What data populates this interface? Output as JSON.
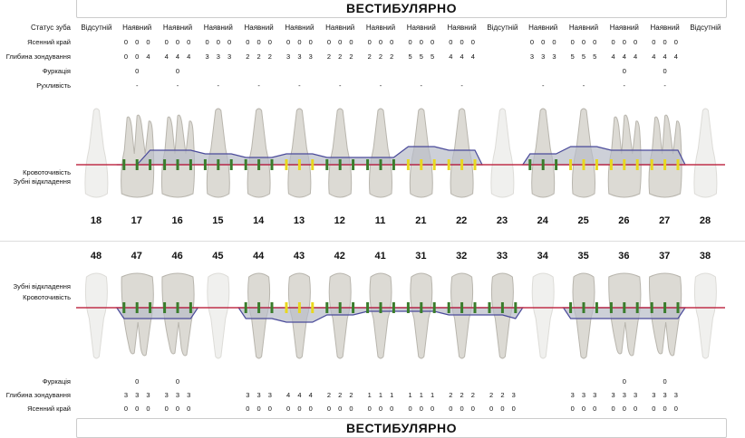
{
  "upper": {
    "title": "ВЕСТИБУЛЯРНО",
    "labels": {
      "status": "Статус зуба",
      "gingival_margin": "Ясенний край",
      "probing_depth": "Глибина зондування",
      "furcation": "Фуркація",
      "mobility": "Рухливість",
      "bleeding": "Кровоточивість",
      "plaque": "Зубні відкладення"
    },
    "teeth": [
      {
        "number": "18",
        "status": "Відсутній",
        "margin": [
          "",
          "",
          ""
        ],
        "depth": [
          "",
          "",
          ""
        ],
        "furcation": "",
        "mobility": ""
      },
      {
        "number": "17",
        "status": "Наявний",
        "margin": [
          "0",
          "0",
          "0"
        ],
        "depth": [
          "0",
          "0",
          "4"
        ],
        "furcation": "0",
        "mobility": "-"
      },
      {
        "number": "16",
        "status": "Наявний",
        "margin": [
          "0",
          "0",
          "0"
        ],
        "depth": [
          "4",
          "4",
          "4"
        ],
        "furcation": "0",
        "mobility": "-"
      },
      {
        "number": "15",
        "status": "Наявний",
        "margin": [
          "0",
          "0",
          "0"
        ],
        "depth": [
          "3",
          "3",
          "3"
        ],
        "furcation": "",
        "mobility": "-"
      },
      {
        "number": "14",
        "status": "Наявний",
        "margin": [
          "0",
          "0",
          "0"
        ],
        "depth": [
          "2",
          "2",
          "2"
        ],
        "furcation": "",
        "mobility": "-"
      },
      {
        "number": "13",
        "status": "Наявний",
        "margin": [
          "0",
          "0",
          "0"
        ],
        "depth": [
          "3",
          "3",
          "3"
        ],
        "furcation": "",
        "mobility": "-"
      },
      {
        "number": "12",
        "status": "Наявний",
        "margin": [
          "0",
          "0",
          "0"
        ],
        "depth": [
          "2",
          "2",
          "2"
        ],
        "furcation": "",
        "mobility": "-"
      },
      {
        "number": "11",
        "status": "Наявний",
        "margin": [
          "0",
          "0",
          "0"
        ],
        "depth": [
          "2",
          "2",
          "2"
        ],
        "furcation": "",
        "mobility": "-"
      },
      {
        "number": "21",
        "status": "Наявний",
        "margin": [
          "0",
          "0",
          "0"
        ],
        "depth": [
          "5",
          "5",
          "5"
        ],
        "furcation": "",
        "mobility": "-"
      },
      {
        "number": "22",
        "status": "Наявний",
        "margin": [
          "0",
          "0",
          "0"
        ],
        "depth": [
          "4",
          "4",
          "4"
        ],
        "furcation": "",
        "mobility": "-"
      },
      {
        "number": "23",
        "status": "Відсутній",
        "margin": [
          "",
          "",
          ""
        ],
        "depth": [
          "",
          "",
          ""
        ],
        "furcation": "",
        "mobility": ""
      },
      {
        "number": "24",
        "status": "Наявний",
        "margin": [
          "0",
          "0",
          "0"
        ],
        "depth": [
          "3",
          "3",
          "3"
        ],
        "furcation": "",
        "mobility": "-"
      },
      {
        "number": "25",
        "status": "Наявний",
        "margin": [
          "0",
          "0",
          "0"
        ],
        "depth": [
          "5",
          "5",
          "5"
        ],
        "furcation": "",
        "mobility": "-"
      },
      {
        "number": "26",
        "status": "Наявний",
        "margin": [
          "0",
          "0",
          "0"
        ],
        "depth": [
          "4",
          "4",
          "4"
        ],
        "furcation": "0",
        "mobility": "-"
      },
      {
        "number": "27",
        "status": "Наявний",
        "margin": [
          "0",
          "0",
          "0"
        ],
        "depth": [
          "4",
          "4",
          "4"
        ],
        "furcation": "0",
        "mobility": "-"
      },
      {
        "number": "28",
        "status": "Відсутній",
        "margin": [
          "",
          "",
          ""
        ],
        "depth": [
          "",
          "",
          ""
        ],
        "furcation": "",
        "mobility": ""
      }
    ]
  },
  "lower": {
    "title": "ВЕСТИБУЛЯРНО",
    "labels": {
      "plaque": "Зубні відкладення",
      "bleeding": "Кровоточивість",
      "furcation": "Фуркація",
      "probing_depth": "Глибина зондування",
      "gingival_margin": "Ясенний край"
    },
    "teeth": [
      {
        "number": "48",
        "present": false,
        "margin": [
          "",
          "",
          ""
        ],
        "depth": [
          "",
          "",
          ""
        ],
        "furcation": ""
      },
      {
        "number": "47",
        "present": true,
        "margin": [
          "0",
          "0",
          "0"
        ],
        "depth": [
          "3",
          "3",
          "3"
        ],
        "furcation": "0"
      },
      {
        "number": "46",
        "present": true,
        "margin": [
          "0",
          "0",
          "0"
        ],
        "depth": [
          "3",
          "3",
          "3"
        ],
        "furcation": "0"
      },
      {
        "number": "45",
        "present": false,
        "margin": [
          "",
          "",
          ""
        ],
        "depth": [
          "",
          "",
          ""
        ],
        "furcation": ""
      },
      {
        "number": "44",
        "present": true,
        "margin": [
          "0",
          "0",
          "0"
        ],
        "depth": [
          "3",
          "3",
          "3"
        ],
        "furcation": ""
      },
      {
        "number": "43",
        "present": true,
        "margin": [
          "0",
          "0",
          "0"
        ],
        "depth": [
          "4",
          "4",
          "4"
        ],
        "furcation": ""
      },
      {
        "number": "42",
        "present": true,
        "margin": [
          "0",
          "0",
          "0"
        ],
        "depth": [
          "2",
          "2",
          "2"
        ],
        "furcation": ""
      },
      {
        "number": "41",
        "present": true,
        "margin": [
          "0",
          "0",
          "0"
        ],
        "depth": [
          "1",
          "1",
          "1"
        ],
        "furcation": ""
      },
      {
        "number": "31",
        "present": true,
        "margin": [
          "0",
          "0",
          "0"
        ],
        "depth": [
          "1",
          "1",
          "1"
        ],
        "furcation": ""
      },
      {
        "number": "32",
        "present": true,
        "margin": [
          "0",
          "0",
          "0"
        ],
        "depth": [
          "2",
          "2",
          "2"
        ],
        "furcation": ""
      },
      {
        "number": "33",
        "present": true,
        "margin": [
          "0",
          "0",
          "0"
        ],
        "depth": [
          "2",
          "2",
          "3"
        ],
        "furcation": ""
      },
      {
        "number": "34",
        "present": false,
        "margin": [
          "",
          "",
          ""
        ],
        "depth": [
          "",
          "",
          ""
        ],
        "furcation": ""
      },
      {
        "number": "35",
        "present": true,
        "margin": [
          "0",
          "0",
          "0"
        ],
        "depth": [
          "3",
          "3",
          "3"
        ],
        "furcation": ""
      },
      {
        "number": "36",
        "present": true,
        "margin": [
          "0",
          "0",
          "0"
        ],
        "depth": [
          "3",
          "3",
          "3"
        ],
        "furcation": "0"
      },
      {
        "number": "37",
        "present": true,
        "margin": [
          "0",
          "0",
          "0"
        ],
        "depth": [
          "3",
          "3",
          "3"
        ],
        "furcation": "0"
      },
      {
        "number": "38",
        "present": false,
        "margin": [
          "",
          "",
          ""
        ],
        "depth": [
          "",
          "",
          ""
        ],
        "furcation": ""
      }
    ]
  },
  "colors": {
    "gum_line": "#c0304a",
    "pocket_line": "#4a4a9a",
    "pocket_fill": "#b8bcc8",
    "bleeding": "#3a7d2c",
    "plaque": "#e8d820"
  }
}
